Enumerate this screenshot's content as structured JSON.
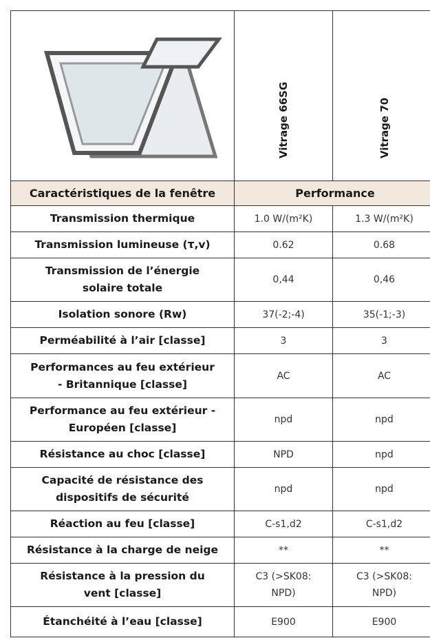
{
  "header": {
    "columns": [
      "Vitrage 66SG",
      "Vitrage 70"
    ],
    "label_heading": "Caractéristiques de la fenêtre",
    "value_heading": "Performance"
  },
  "table": {
    "rows": [
      {
        "label": [
          "Transmission thermique"
        ],
        "values": [
          [
            "1.0 W/(m²K)"
          ],
          [
            "1.3 W/(m²K)"
          ]
        ]
      },
      {
        "label": [
          "Transmission lumineuse (τ,v)"
        ],
        "values": [
          [
            "0.62"
          ],
          [
            "0.68"
          ]
        ]
      },
      {
        "label": [
          "Transmission de l’énergie",
          "solaire totale"
        ],
        "values": [
          [
            "0,44"
          ],
          [
            "0,46"
          ]
        ]
      },
      {
        "label": [
          "Isolation sonore (Rw)"
        ],
        "values": [
          [
            "37(-2;-4)"
          ],
          [
            "35(-1;-3)"
          ]
        ]
      },
      {
        "label": [
          "Perméabilité à l’air [classe]"
        ],
        "values": [
          [
            "3"
          ],
          [
            "3"
          ]
        ]
      },
      {
        "label": [
          "Performances au feu extérieur",
          "- Britannique [classe]"
        ],
        "values": [
          [
            "AC"
          ],
          [
            "AC"
          ]
        ]
      },
      {
        "label": [
          "Performance au feu extérieur -",
          "Européen [classe]"
        ],
        "values": [
          [
            "npd"
          ],
          [
            "npd"
          ]
        ]
      },
      {
        "label": [
          "Résistance au choc [classe]"
        ],
        "values": [
          [
            "NPD"
          ],
          [
            "npd"
          ]
        ]
      },
      {
        "label": [
          "Capacité de résistance des",
          "dispositifs de sécurité"
        ],
        "values": [
          [
            "npd"
          ],
          [
            "npd"
          ]
        ]
      },
      {
        "label": [
          "Réaction au feu [classe]"
        ],
        "values": [
          [
            "C-s1,d2"
          ],
          [
            "C-s1,d2"
          ]
        ]
      },
      {
        "label": [
          "Résistance à la charge de neige"
        ],
        "values": [
          [
            "**"
          ],
          [
            "**"
          ]
        ]
      },
      {
        "label": [
          "Résistance à la pression du",
          "vent [classe]"
        ],
        "values": [
          [
            "C3 (>SK08:",
            "NPD)"
          ],
          [
            "C3 (>SK08:",
            "NPD)"
          ]
        ]
      },
      {
        "label": [
          "Étanchéité à l’eau [classe]"
        ],
        "values": [
          [
            "E900"
          ],
          [
            "E900"
          ]
        ]
      }
    ]
  }
}
